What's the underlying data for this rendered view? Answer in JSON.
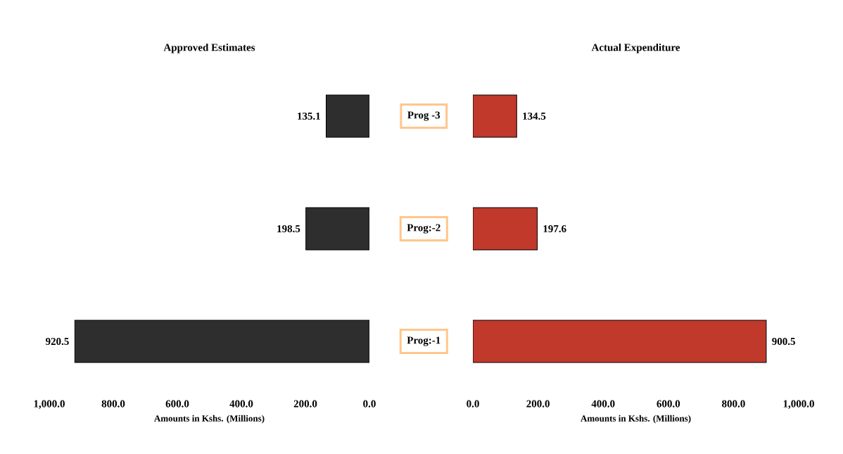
{
  "chart_data": [
    {
      "type": "bar",
      "orientation": "horizontal",
      "title": "Approved Estimates",
      "xlabel": "Amounts in Kshs. (Millions)",
      "categories": [
        "Prog -3",
        "Prog:-2",
        "Prog:-1"
      ],
      "values": [
        135.1,
        198.5,
        920.5
      ],
      "color": "#2e2e2e",
      "xlim": [
        1000,
        0
      ],
      "xticks": [
        {
          "value": 1000,
          "label": "1,000.0"
        },
        {
          "value": 800,
          "label": "800.0"
        },
        {
          "value": 600,
          "label": "600.0"
        },
        {
          "value": 400,
          "label": "400.0"
        },
        {
          "value": 200,
          "label": "200.0"
        },
        {
          "value": 0,
          "label": "0.0"
        }
      ],
      "data_labels": true
    },
    {
      "type": "bar",
      "orientation": "horizontal",
      "title": "Actual Expenditure",
      "xlabel": "Amounts in Kshs. (Millions)",
      "categories": [
        null,
        null,
        null
      ],
      "values": [
        134.5,
        197.6,
        900.5
      ],
      "color": "#c0392b",
      "xlim": [
        0,
        1000
      ],
      "xticks": [
        {
          "value": 0,
          "label": "0.0"
        },
        {
          "value": 200,
          "label": "200.0"
        },
        {
          "value": 400,
          "label": "400.0"
        },
        {
          "value": 600,
          "label": "600.0"
        },
        {
          "value": 800,
          "label": "800.0"
        },
        {
          "value": 1000,
          "label": "1,000.0"
        }
      ],
      "data_labels": true
    }
  ]
}
